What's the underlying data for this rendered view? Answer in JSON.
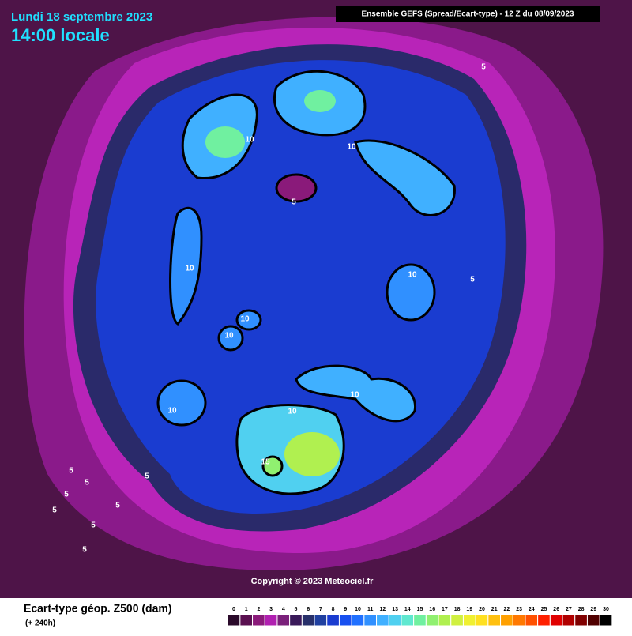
{
  "header": {
    "date": "Lundi 18 septembre 2023",
    "time": "14:00 locale",
    "model": "Ensemble GEFS  (Spread/Ecart-type) - 12 Z du 08/09/2023"
  },
  "map": {
    "contour_labels": [
      5,
      10,
      10,
      5,
      10,
      10,
      5,
      10,
      10,
      10,
      10,
      10,
      15,
      5,
      5,
      5,
      5,
      5,
      5,
      5,
      5
    ]
  },
  "copyright": "Copyright © 2023 Meteociel.fr",
  "legend": {
    "title": "Ecart-type géop. Z500 (dam)",
    "subtitle": "(+ 240h)",
    "ticks": [
      0,
      1,
      2,
      3,
      4,
      5,
      6,
      7,
      8,
      9,
      10,
      11,
      12,
      13,
      14,
      15,
      16,
      17,
      18,
      19,
      20,
      21,
      22,
      23,
      24,
      25,
      26,
      27,
      28,
      29,
      30
    ],
    "colors": [
      "#2a0a2a",
      "#5a1050",
      "#8a1a7a",
      "#b020b0",
      "#7a207a",
      "#3a1a5a",
      "#28306a",
      "#2040a0",
      "#1a3cd0",
      "#1850f0",
      "#2070ff",
      "#3090ff",
      "#40b0ff",
      "#50d0f0",
      "#60e8d0",
      "#70f0a0",
      "#90f070",
      "#b0f050",
      "#d0f040",
      "#f0f030",
      "#ffe020",
      "#ffc010",
      "#ffa000",
      "#ff7800",
      "#ff5000",
      "#ff2000",
      "#e00000",
      "#b00000",
      "#800000",
      "#500000",
      "#000000"
    ]
  }
}
